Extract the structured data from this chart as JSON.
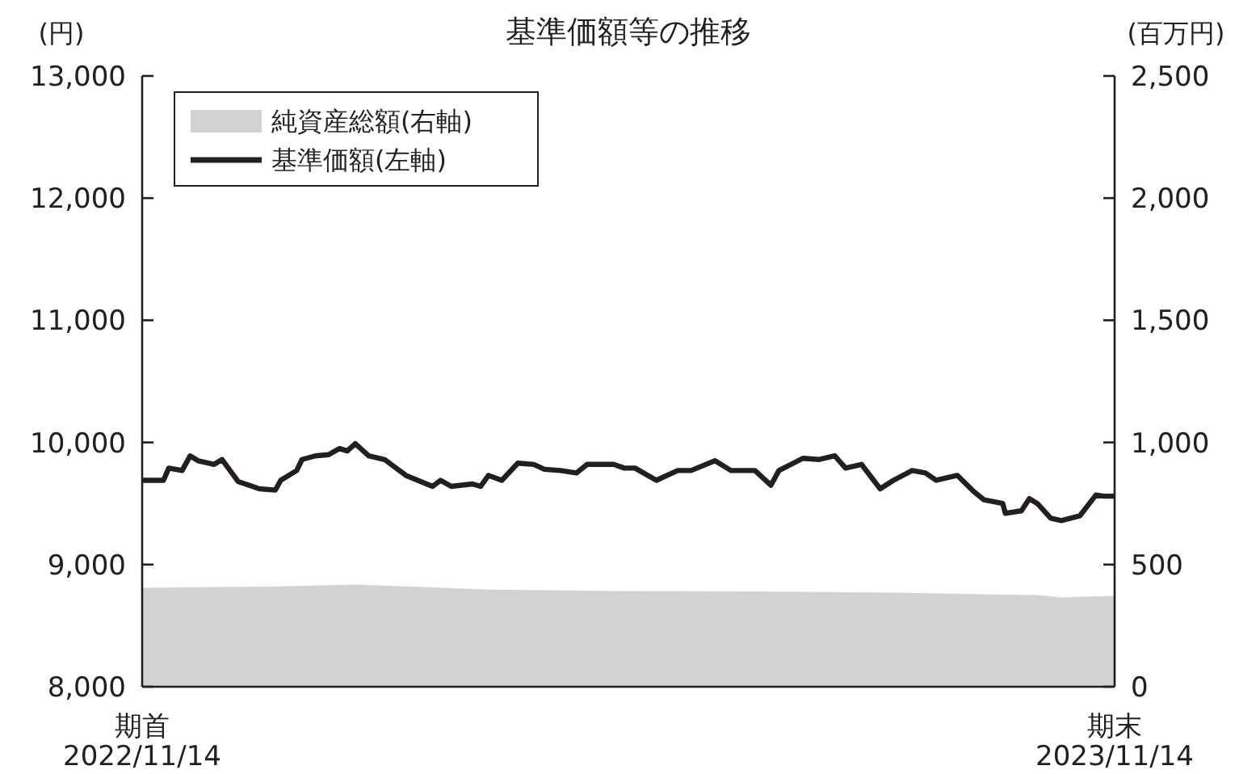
{
  "chart_data": {
    "type": "line",
    "title": "基準価額等の推移",
    "ylabel": "(円)",
    "y2label": "(百万円)",
    "xlim": [
      "2022-11-14",
      "2023-11-14"
    ],
    "xticks": [
      {
        "value": "2022-11-14",
        "label": "期首\n2022/11/14"
      },
      {
        "value": "2023-11-14",
        "label": "期末\n2023/11/14"
      }
    ],
    "ylim": [
      8000,
      13000
    ],
    "yticks": [
      {
        "value": 8000,
        "label": "8,000"
      },
      {
        "value": 9000,
        "label": "9,000"
      },
      {
        "value": 10000,
        "label": "10,000"
      },
      {
        "value": 11000,
        "label": "11,000"
      },
      {
        "value": 12000,
        "label": "12,000"
      },
      {
        "value": 13000,
        "label": "13,000"
      }
    ],
    "y2lim": [
      0,
      2500
    ],
    "y2ticks": [
      0,
      500,
      {
        "value": 1000,
        "label": "1,000"
      },
      {
        "value": 1500,
        "label": "1,500"
      },
      {
        "value": 2000,
        "label": "2,000"
      },
      {
        "value": 2500,
        "label": "2,500"
      }
    ],
    "legend": "top left",
    "grid": false,
    "series": [
      {
        "name": "純資産総額(右軸)",
        "type": "area",
        "axis": "y2",
        "color": "#d1d2d4",
        "x": [
          "2022-11-14",
          "2023-01-03",
          "2023-02-02",
          "2023-03-24",
          "2023-05-10",
          "2023-07-02",
          "2023-08-23",
          "2023-10-16",
          "2023-10-25",
          "2023-11-14"
        ],
        "values": [
          405,
          410,
          418,
          398,
          392,
          390,
          385,
          375,
          365,
          372
        ]
      },
      {
        "name": "基準価額(左軸)",
        "axis": "y",
        "color": "#231f20",
        "x": [
          "2022-11-14",
          "2022-11-17",
          "2022-11-22",
          "2022-11-24",
          "2022-11-29",
          "2022-12-02",
          "2022-12-05",
          "2022-12-11",
          "2022-12-14",
          "2022-12-20",
          "2022-12-28",
          "2023-01-03",
          "2023-01-05",
          "2023-01-11",
          "2023-01-13",
          "2023-01-18",
          "2023-01-23",
          "2023-01-27",
          "2023-01-30",
          "2023-02-02",
          "2023-02-07",
          "2023-02-13",
          "2023-02-21",
          "2023-03-03",
          "2023-03-06",
          "2023-03-10",
          "2023-03-18",
          "2023-03-21",
          "2023-03-24",
          "2023-03-29",
          "2023-04-04",
          "2023-04-10",
          "2023-04-14",
          "2023-04-20",
          "2023-04-26",
          "2023-04-30",
          "2023-05-10",
          "2023-05-14",
          "2023-05-18",
          "2023-05-26",
          "2023-06-03",
          "2023-06-08",
          "2023-06-17",
          "2023-06-23",
          "2023-07-02",
          "2023-07-08",
          "2023-07-11",
          "2023-07-20",
          "2023-07-26",
          "2023-08-01",
          "2023-08-05",
          "2023-08-11",
          "2023-08-18",
          "2023-08-23",
          "2023-08-30",
          "2023-09-04",
          "2023-09-08",
          "2023-09-16",
          "2023-09-22",
          "2023-09-26",
          "2023-10-03",
          "2023-10-04",
          "2023-10-10",
          "2023-10-13",
          "2023-10-16",
          "2023-10-21",
          "2023-10-25",
          "2023-11-01",
          "2023-11-07",
          "2023-11-10",
          "2023-11-14"
        ],
        "values": [
          9690,
          9690,
          9690,
          9790,
          9770,
          9890,
          9850,
          9820,
          9860,
          9680,
          9620,
          9610,
          9690,
          9770,
          9860,
          9890,
          9900,
          9950,
          9930,
          9990,
          9890,
          9860,
          9730,
          9640,
          9690,
          9640,
          9660,
          9640,
          9730,
          9690,
          9830,
          9820,
          9780,
          9770,
          9750,
          9820,
          9820,
          9790,
          9790,
          9690,
          9770,
          9770,
          9850,
          9770,
          9770,
          9650,
          9770,
          9870,
          9860,
          9890,
          9790,
          9820,
          9620,
          9690,
          9770,
          9750,
          9690,
          9730,
          9600,
          9530,
          9500,
          9420,
          9440,
          9540,
          9500,
          9380,
          9360,
          9400,
          9570,
          9560,
          9560
        ]
      }
    ]
  }
}
